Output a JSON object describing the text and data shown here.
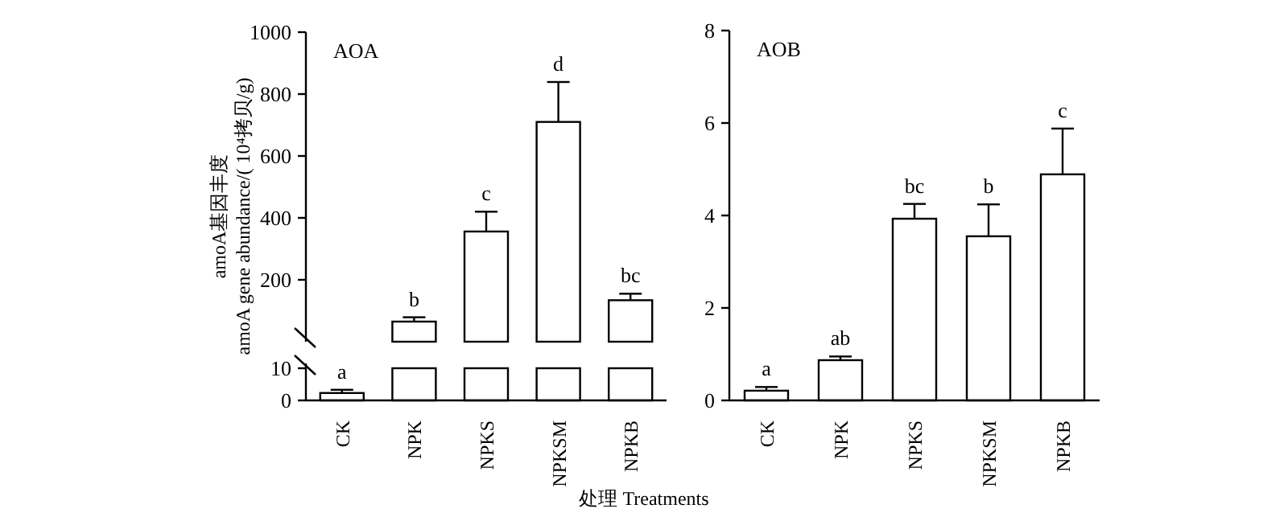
{
  "chart_data": [
    {
      "type": "bar",
      "title": "AOA",
      "ylabel": "amoA基因丰度\namoA gene abundance/( 10⁴拷贝/g)",
      "categories": [
        "CK",
        "NPK",
        "NPKS",
        "NPKSM",
        "NPKB"
      ],
      "values": [
        null,
        65,
        356,
        710,
        134
      ],
      "errors": [
        null,
        [
          65,
          79
        ],
        [
          356,
          420
        ],
        [
          710,
          839
        ],
        [
          134,
          155
        ]
      ],
      "ylim": [
        0,
        1000
      ],
      "yticks": [
        200,
        400,
        600,
        800,
        1000
      ],
      "tick_labels": "y",
      "annotations": [
        {
          "text": "b",
          "x": "NPK",
          "y": 79
        },
        {
          "text": "c",
          "x": "NPKS",
          "y": 420
        },
        {
          "text": "d",
          "x": "NPKSM",
          "y": 839
        },
        {
          "text": "bc",
          "x": "NPKB",
          "y": 155
        }
      ]
    },
    {
      "type": "bar",
      "categories": [
        "CK",
        "NPK",
        "NPKS",
        "NPKSM",
        "NPKB"
      ],
      "values": [
        2.3,
        10,
        10,
        10,
        10
      ],
      "errors": [
        [
          2.3,
          3.3
        ],
        null,
        null,
        null,
        null
      ],
      "ylim": [
        0,
        11.5
      ],
      "yticks": [
        0,
        10
      ],
      "xlabel": "处理 Treatments",
      "annotations": [
        {
          "text": "a",
          "x": "CK",
          "y": 3.3
        }
      ]
    },
    {
      "type": "bar",
      "title": "AOB",
      "categories": [
        "CK",
        "NPK",
        "NPKS",
        "NPKSM",
        "NPKB"
      ],
      "values": [
        0.21,
        0.87,
        3.93,
        3.55,
        4.89
      ],
      "errors": [
        [
          0.21,
          0.29
        ],
        [
          0.87,
          0.95
        ],
        [
          3.93,
          4.25
        ],
        [
          3.55,
          4.24
        ],
        [
          4.89,
          5.88
        ]
      ],
      "ylim": [
        0,
        8
      ],
      "yticks": [
        0,
        2,
        4,
        6,
        8
      ],
      "annotations": [
        {
          "text": "a",
          "x": "CK",
          "y": 0.29
        },
        {
          "text": "ab",
          "x": "NPK",
          "y": 0.95
        },
        {
          "text": "bc",
          "x": "NPKS",
          "y": 4.25
        },
        {
          "text": "b",
          "x": "NPKSM",
          "y": 4.24
        },
        {
          "text": "c",
          "x": "NPKB",
          "y": 5.88
        }
      ]
    }
  ]
}
